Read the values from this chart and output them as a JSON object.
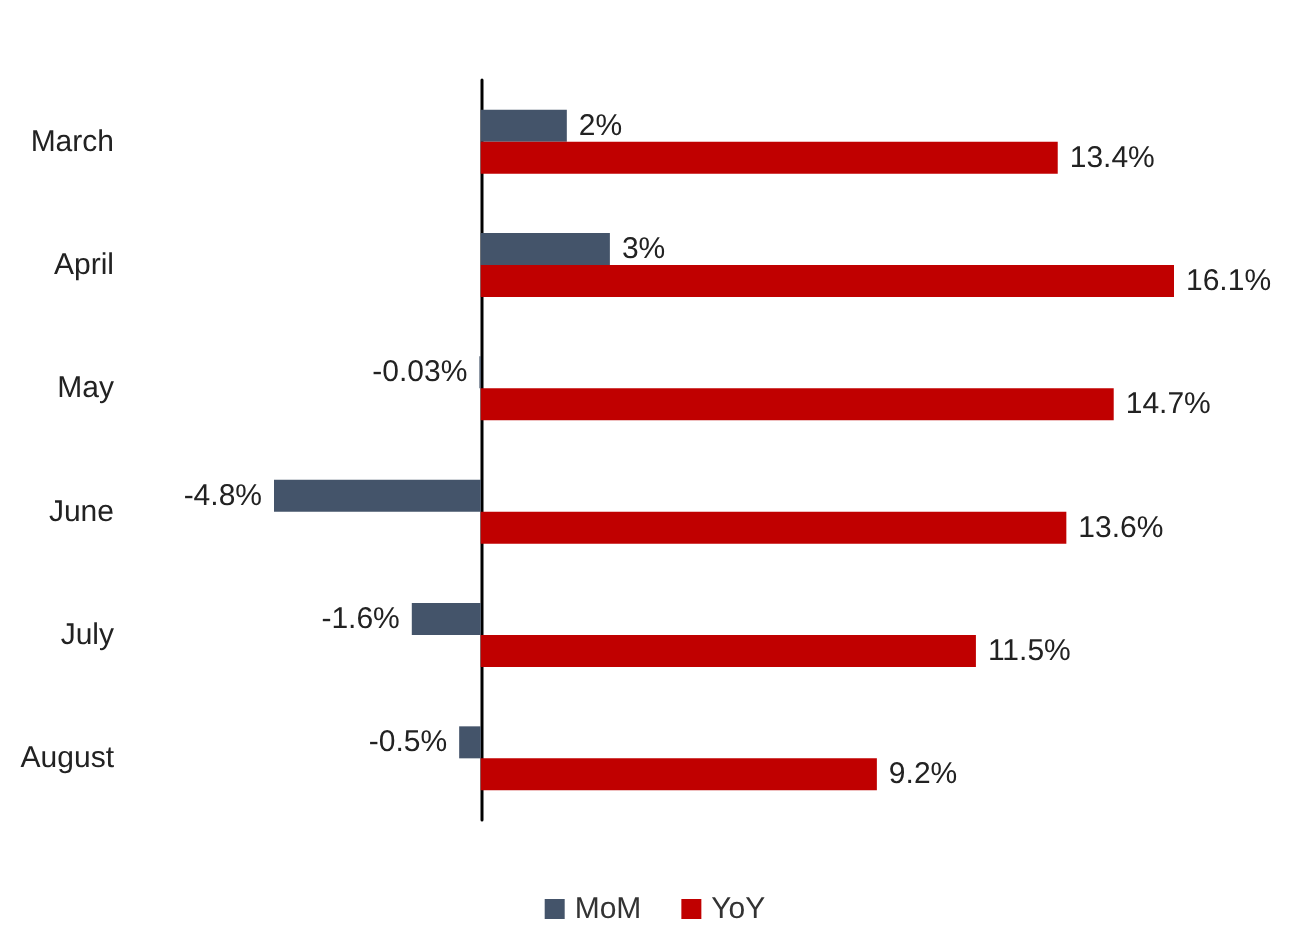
{
  "chart_data": {
    "type": "bar",
    "orientation": "horizontal",
    "categories": [
      "March",
      "April",
      "May",
      "June",
      "July",
      "August"
    ],
    "series": [
      {
        "name": "MoM",
        "color": "#44546a",
        "values": [
          2,
          3,
          -0.03,
          -4.8,
          -1.6,
          -0.5
        ],
        "value_labels": [
          "2%",
          "3%",
          "-0.03%",
          "-4.8%",
          "-1.6%",
          "-0.5%"
        ]
      },
      {
        "name": "YoY",
        "color": "#c00000",
        "values": [
          13.4,
          16.1,
          14.7,
          13.6,
          11.5,
          9.2
        ],
        "value_labels": [
          "13.4%",
          "16.1%",
          "14.7%",
          "13.6%",
          "11.5%",
          "9.2%"
        ]
      }
    ],
    "tick_labels": "y",
    "grid": false,
    "legend": "bottom"
  }
}
